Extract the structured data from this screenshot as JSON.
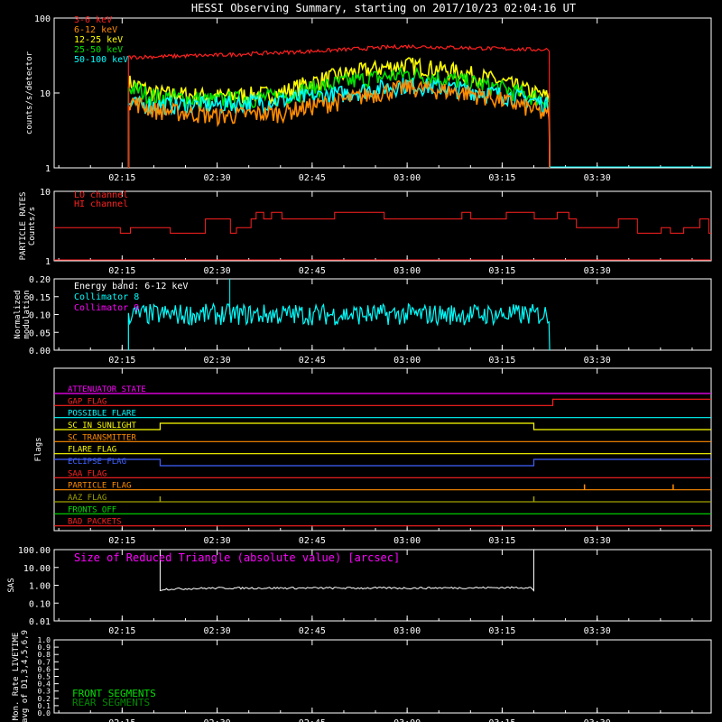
{
  "title": "HESSI Observing Summary, starting on 2017/10/23 02:04:16 UT",
  "time_ticks": [
    "02:15",
    "02:30",
    "02:45",
    "03:00",
    "03:15",
    "03:30"
  ],
  "chart_data": [
    {
      "type": "line",
      "name": "count-rates",
      "ylabel": "counts/s/detector",
      "yscale": "log",
      "ylim": [
        1,
        100
      ],
      "yticks": [
        "1",
        "10",
        "100"
      ],
      "xlim": [
        "02:04:16",
        "03:48:00"
      ],
      "legend_position": "top-left",
      "series": [
        {
          "name": "3-6 keV",
          "color": "#ff2020",
          "points": [
            [
              "02:04",
              "0"
            ],
            [
              "02:16",
              30
            ],
            [
              "02:30",
              32
            ],
            [
              "02:45",
              36
            ],
            [
              "03:00",
              42
            ],
            [
              "03:10",
              40
            ],
            [
              "03:20",
              38
            ],
            [
              "03:22",
              38
            ],
            [
              "03:23",
              "0"
            ]
          ]
        },
        {
          "name": "6-12 keV",
          "color": "#ff8c00",
          "points": [
            [
              "02:16",
              8
            ],
            [
              "02:20",
              6
            ],
            [
              "02:30",
              5
            ],
            [
              "02:40",
              5.5
            ],
            [
              "02:50",
              8
            ],
            [
              "03:00",
              12
            ],
            [
              "03:10",
              10
            ],
            [
              "03:20",
              6
            ],
            [
              "03:22",
              5
            ]
          ]
        },
        {
          "name": "12-25 keV",
          "color": "#ffff00",
          "points": [
            [
              "02:16",
              14
            ],
            [
              "02:20",
              10
            ],
            [
              "02:30",
              9
            ],
            [
              "02:40",
              10
            ],
            [
              "02:50",
              18
            ],
            [
              "03:00",
              24
            ],
            [
              "03:10",
              18
            ],
            [
              "03:20",
              10
            ],
            [
              "03:22",
              9
            ]
          ]
        },
        {
          "name": "25-50 keV",
          "color": "#00e000",
          "points": [
            [
              "02:16",
              12
            ],
            [
              "02:20",
              9
            ],
            [
              "02:30",
              8
            ],
            [
              "02:40",
              9
            ],
            [
              "02:50",
              14
            ],
            [
              "03:00",
              18
            ],
            [
              "03:10",
              14
            ],
            [
              "03:20",
              9
            ],
            [
              "03:22",
              8
            ]
          ]
        },
        {
          "name": "50-100 keV",
          "color": "#00ffff",
          "points": [
            [
              "02:16",
              7
            ],
            [
              "02:20",
              7
            ],
            [
              "02:30",
              7
            ],
            [
              "02:40",
              8
            ],
            [
              "02:50",
              10
            ],
            [
              "03:00",
              13
            ],
            [
              "03:10",
              11
            ],
            [
              "03:20",
              8
            ],
            [
              "03:22",
              7
            ]
          ]
        }
      ]
    },
    {
      "type": "line",
      "name": "particle-rates",
      "ylabel": "PARTICLE RATES\nCounts/s",
      "yscale": "log",
      "ylim": [
        1,
        10
      ],
      "yticks": [
        "1",
        "10"
      ],
      "legend_position": "top-left",
      "series": [
        {
          "name": "LO channel",
          "color": "#ff2020",
          "values_note": ""
        },
        {
          "name": "HI channel",
          "color": "#ff2020"
        }
      ],
      "hi_channel_levels": [
        3,
        4,
        5
      ]
    },
    {
      "type": "line",
      "name": "modulation",
      "ylabel": "Normalized\nmodulation",
      "ylim": [
        0,
        0.2
      ],
      "yticks": [
        "0.00",
        "0.05",
        "0.10",
        "0.15",
        "0.20"
      ],
      "legend_position": "top-left",
      "annotation": "Energy band: 6-12 keV",
      "series": [
        {
          "name": "Collimator 8",
          "color": "#00ffff",
          "mean": 0.1,
          "spread": 0.03
        },
        {
          "name": "Collimator 9",
          "color": "#ff00ff"
        }
      ]
    },
    {
      "type": "line",
      "name": "flags",
      "ylabel": "Flags",
      "flags": [
        {
          "name": "ATTENUATOR STATE",
          "color": "#ff00ff",
          "changes": []
        },
        {
          "name": "GAP_FLAG",
          "color": "#ff2020",
          "changes": [
            [
              "03:23",
              "up"
            ]
          ]
        },
        {
          "name": "POSSIBLE FLARE",
          "color": "#00ffff",
          "changes": []
        },
        {
          "name": "SC IN SUNLIGHT",
          "color": "#ffff00",
          "changes": [
            [
              "02:21",
              "up"
            ],
            [
              "03:20",
              "down"
            ]
          ]
        },
        {
          "name": "SC TRANSMITTER",
          "color": "#ff8c00",
          "changes": []
        },
        {
          "name": "FLARE FLAG",
          "color": "#ffff00",
          "changes": []
        },
        {
          "name": "ECLIPSE FLAG",
          "color": "#4060ff",
          "changes": [
            [
              "02:21",
              "down"
            ],
            [
              "03:20",
              "up"
            ]
          ]
        },
        {
          "name": "SAA FLAG",
          "color": "#ff2020",
          "changes": []
        },
        {
          "name": "PARTICLE FLAG",
          "color": "#ff8c00",
          "spikes": [
            "03:28",
            "03:42"
          ]
        },
        {
          "name": "AAZ FLAG",
          "color": "#a0a000",
          "spikes": [
            "02:21",
            "03:20"
          ]
        },
        {
          "name": "FRONTS OFF",
          "color": "#00e000",
          "changes": []
        },
        {
          "name": "BAD PACKETS",
          "color": "#ff2020",
          "changes": []
        }
      ]
    },
    {
      "type": "line",
      "name": "sas",
      "ylabel": "SAS",
      "yscale": "log",
      "ylim": [
        0.01,
        100
      ],
      "yticks": [
        "0.01",
        "0.10",
        "1.00",
        "10.00",
        "100.00"
      ],
      "annotation": "Size of Reduced Triangle (absolute value) [arcsec]",
      "annotation_color": "#ff00ff",
      "series": [
        {
          "name": "",
          "color": "#ffffff",
          "points": [
            [
              "02:21",
              100
            ],
            [
              "02:21",
              0.6
            ],
            [
              "02:30",
              0.7
            ],
            [
              "03:00",
              0.7
            ],
            [
              "03:20",
              0.75
            ],
            [
              "03:20",
              100
            ]
          ]
        }
      ]
    },
    {
      "type": "line",
      "name": "livetime",
      "ylabel": "Mon. Rate LIVETIME\navg of D1,3,4,5,6,9",
      "ylim": [
        0,
        1
      ],
      "yticks": [
        "0.0",
        "0.1",
        "0.2",
        "0.3",
        "0.4",
        "0.5",
        "0.6",
        "0.7",
        "0.8",
        "0.9",
        "1.0"
      ],
      "legend_position": "bottom-left",
      "series": [
        {
          "name": "FRONT SEGMENTS",
          "color": "#00e000"
        },
        {
          "name": "REAR SEGMENTS",
          "color": "#008a00"
        }
      ]
    }
  ]
}
